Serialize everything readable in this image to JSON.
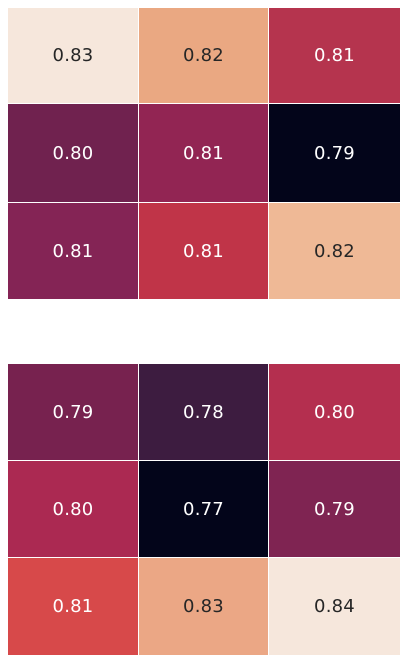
{
  "chart_data": [
    {
      "type": "heatmap",
      "title": "",
      "xlabel": "",
      "ylabel": "",
      "values": [
        [
          "0.83",
          "0.82",
          "0.81"
        ],
        [
          "0.80",
          "0.81",
          "0.79"
        ],
        [
          "0.81",
          "0.81",
          "0.82"
        ]
      ],
      "cell_colors": [
        [
          "#f6e7dc",
          "#eaa882",
          "#b5344e"
        ],
        [
          "#70224f",
          "#922553",
          "#03051a"
        ],
        [
          "#842455",
          "#c03448",
          "#efb996"
        ]
      ],
      "text_colors": [
        [
          "#262626",
          "#262626",
          "#ffffff"
        ],
        [
          "#ffffff",
          "#ffffff",
          "#ffffff"
        ],
        [
          "#ffffff",
          "#ffffff",
          "#262626"
        ]
      ]
    },
    {
      "type": "heatmap",
      "title": "",
      "xlabel": "",
      "ylabel": "",
      "values": [
        [
          "0.79",
          "0.78",
          "0.80"
        ],
        [
          "0.80",
          "0.77",
          "0.79"
        ],
        [
          "0.81",
          "0.83",
          "0.84"
        ]
      ],
      "cell_colors": [
        [
          "#77224f",
          "#3d1c40",
          "#b42f4f"
        ],
        [
          "#ab2952",
          "#03051a",
          "#7f2452"
        ],
        [
          "#d7494a",
          "#eba785",
          "#f6e7dc"
        ]
      ],
      "text_colors": [
        [
          "#ffffff",
          "#ffffff",
          "#ffffff"
        ],
        [
          "#ffffff",
          "#ffffff",
          "#ffffff"
        ],
        [
          "#ffffff",
          "#262626",
          "#262626"
        ]
      ]
    }
  ]
}
